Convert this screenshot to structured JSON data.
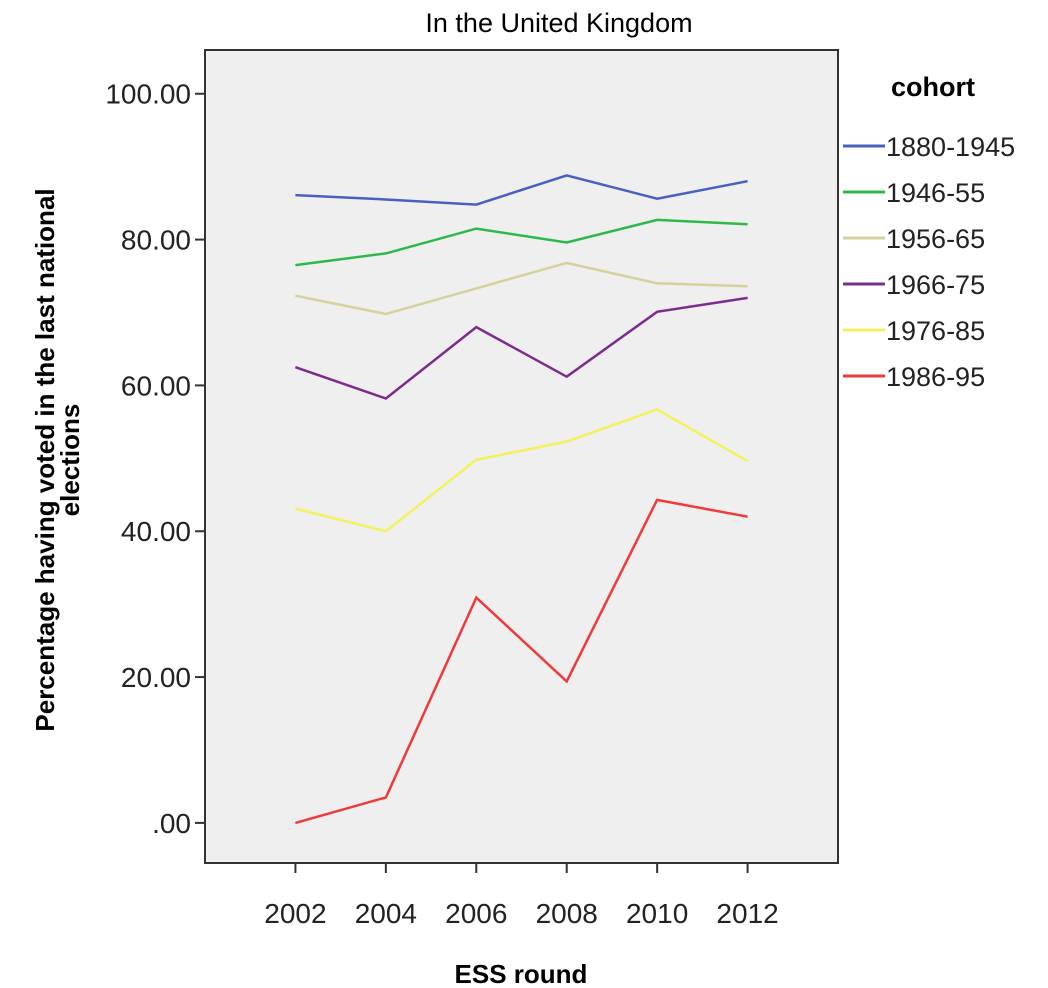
{
  "chart_data": {
    "type": "line",
    "title": "In the United Kingdom",
    "xlabel": "ESS round",
    "ylabel": "Percentage having voted in the last national elections",
    "ylabel_lines": [
      "Percentage having voted in the last national",
      "elections"
    ],
    "x": [
      2002,
      2004,
      2006,
      2008,
      2010,
      2012
    ],
    "x_tick_labels": [
      "2002",
      "2004",
      "2006",
      "2008",
      "2010",
      "2012"
    ],
    "xlim": [
      2000,
      2014
    ],
    "ylim": [
      -5.5,
      106
    ],
    "y_ticks": [
      0,
      20,
      40,
      60,
      80,
      100
    ],
    "y_tick_labels": [
      ".00",
      "20.00",
      "40.00",
      "60.00",
      "80.00",
      "100.00"
    ],
    "grid": false,
    "legend_title": "cohort",
    "legend_position": "right",
    "series": [
      {
        "name": "1880-1945",
        "color": "#4a5fc1",
        "values": [
          86.1,
          85.5,
          84.8,
          88.8,
          85.6,
          88.0
        ]
      },
      {
        "name": "1946-55",
        "color": "#2eb84b",
        "values": [
          76.5,
          78.1,
          81.5,
          79.6,
          82.7,
          82.1
        ]
      },
      {
        "name": "1956-65",
        "color": "#d6d29e",
        "values": [
          72.3,
          69.8,
          73.3,
          76.8,
          74.0,
          73.6
        ]
      },
      {
        "name": "1966-75",
        "color": "#7b2c8c",
        "values": [
          62.5,
          58.2,
          68.0,
          61.2,
          70.1,
          72.0
        ]
      },
      {
        "name": "1976-85",
        "color": "#f3f25c",
        "values": [
          43.1,
          40.0,
          49.8,
          52.3,
          56.7,
          49.6
        ]
      },
      {
        "name": "1986-95",
        "color": "#f0393a",
        "values": [
          0.0,
          3.5,
          30.9,
          19.4,
          44.3,
          42.0
        ]
      }
    ]
  },
  "colors": {
    "plot_background": "#efefef",
    "frame": "#333333"
  }
}
